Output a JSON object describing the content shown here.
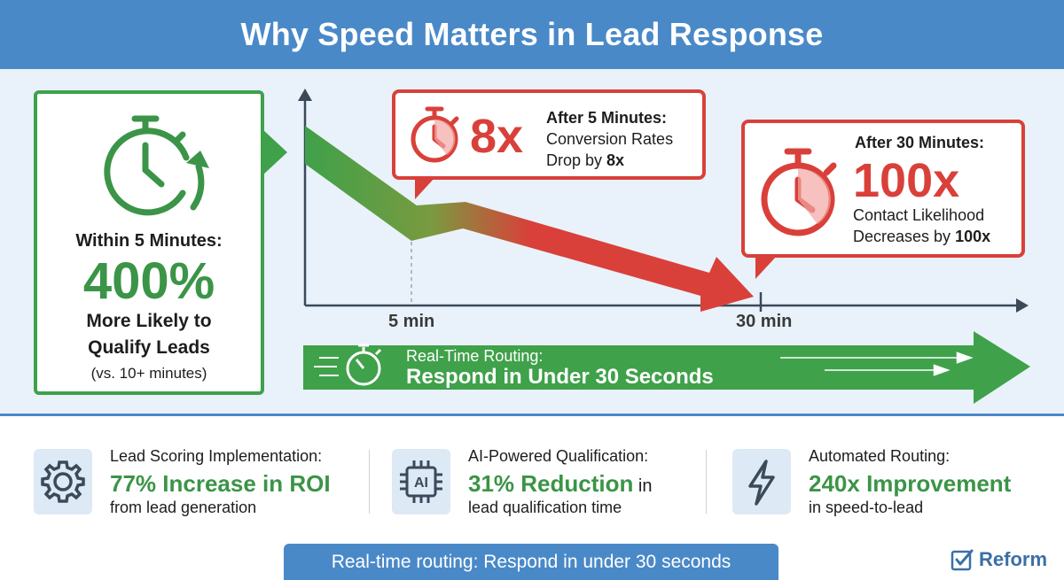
{
  "title": "Why Speed Matters in Lead Response",
  "left_card": {
    "heading": "Within 5 Minutes:",
    "big_value": "400%",
    "line1": "More Likely to",
    "line2": "Qualify Leads",
    "comparison": "(vs. 10+ minutes)"
  },
  "callout_5min": {
    "multiplier": "8x",
    "heading": "After 5 Minutes:",
    "line1": "Conversion Rates",
    "line2_prefix": "Drop by ",
    "line2_bold": "8x"
  },
  "callout_30min": {
    "heading": "After 30 Minutes:",
    "multiplier": "100x",
    "line1": "Contact Likelihood",
    "line2_prefix": "Decreases by ",
    "line2_bold": "100x"
  },
  "axis": {
    "tick_5": "5 min",
    "tick_30": "30 min"
  },
  "routing": {
    "subtitle": "Real-Time Routing:",
    "main": "Respond in Under 30 Seconds"
  },
  "stats": [
    {
      "icon": "gear-icon",
      "label": "Lead Scoring Implementation:",
      "value": "77% Increase in ROI",
      "value_suffix": "",
      "detail": "from lead generation"
    },
    {
      "icon": "ai-chip-icon",
      "icon_text": "AI",
      "label": "AI-Powered Qualification:",
      "value": "31% Reduction",
      "value_suffix": " in",
      "detail": "lead qualification time"
    },
    {
      "icon": "lightning-icon",
      "label": "Automated Routing:",
      "value": "240x Improvement",
      "value_suffix": "",
      "detail": "in speed-to-lead"
    }
  ],
  "banner": "Real-time routing: Respond in under 30 seconds",
  "brand": "Reform",
  "colors": {
    "header_blue": "#4a89c8",
    "green": "#3fa14a",
    "red": "#d9403a",
    "panel_bg": "#e9f2fa"
  }
}
